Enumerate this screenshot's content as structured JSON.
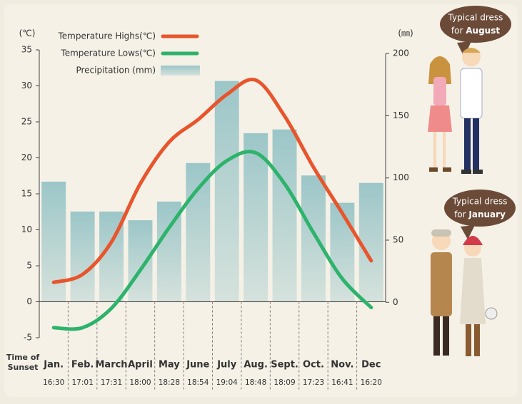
{
  "chart_data": {
    "type": "bar_line",
    "categories": [
      "Jan.",
      "Feb.",
      "March",
      "April",
      "May",
      "June",
      "July",
      "Aug.",
      "Sept.",
      "Oct.",
      "Nov.",
      "Dec"
    ],
    "series": [
      {
        "name": "Precipitation (mm)",
        "type": "bar",
        "axis": "y2",
        "color": "#9cc6c8",
        "values": [
          97,
          73,
          73,
          66,
          81,
          112,
          178,
          136,
          139,
          102,
          80,
          96
        ]
      },
      {
        "name": "Temperature Highs(℃)",
        "type": "line",
        "axis": "y",
        "color": "#e8552c",
        "values": [
          2.7,
          3.8,
          8.3,
          16.4,
          22.2,
          25.3,
          28.8,
          30.8,
          25.8,
          18.7,
          12.3,
          5.7
        ]
      },
      {
        "name": "Temperature Lows(℃)",
        "type": "line",
        "axis": "y",
        "color": "#2db36b",
        "values": [
          -3.6,
          -3.6,
          -0.9,
          4.4,
          10.3,
          15.7,
          19.6,
          20.7,
          16.4,
          9.6,
          3.2,
          -0.8
        ]
      }
    ],
    "y_unit": "(℃)",
    "y2_unit": "(㎜)",
    "ylim": [
      -5,
      35
    ],
    "yticks": [
      -5,
      0,
      5,
      10,
      15,
      20,
      25,
      30,
      35
    ],
    "y2lim": [
      -28.5,
      203
    ],
    "y2ticks": [
      0,
      50,
      100,
      150,
      200
    ],
    "sunset_label": [
      "Time of",
      "Sunset"
    ],
    "sunset_times": [
      "16:30",
      "17:01",
      "17:31",
      "18:00",
      "18:28",
      "18:54",
      "19:04",
      "18:48",
      "18:09",
      "17:23",
      "16:41",
      "16:20"
    ],
    "annotations": [
      {
        "line1": "Typical dress",
        "prefix": "for",
        "month": "August"
      },
      {
        "line1": "Typical dress",
        "prefix": "for",
        "month": "January"
      }
    ]
  }
}
